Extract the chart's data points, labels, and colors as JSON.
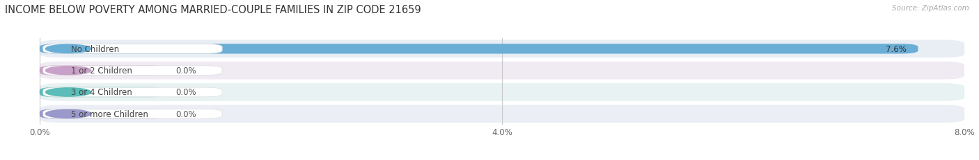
{
  "title": "INCOME BELOW POVERTY AMONG MARRIED-COUPLE FAMILIES IN ZIP CODE 21659",
  "source": "Source: ZipAtlas.com",
  "categories": [
    "No Children",
    "1 or 2 Children",
    "3 or 4 Children",
    "5 or more Children"
  ],
  "values": [
    7.6,
    0.0,
    0.0,
    0.0
  ],
  "bar_colors": [
    "#6aaed6",
    "#c9a0c8",
    "#5bbcb8",
    "#9999cc"
  ],
  "row_bg_colors": [
    "#e8eef4",
    "#f0eaf2",
    "#e8f2f2",
    "#eceef6"
  ],
  "xlim_max": 8.0,
  "xticks": [
    0.0,
    4.0,
    8.0
  ],
  "xtick_labels": [
    "0.0%",
    "4.0%",
    "8.0%"
  ],
  "zero_bar_width": 1.1,
  "title_fontsize": 10.5,
  "label_fontsize": 8.5,
  "tick_fontsize": 8.5,
  "value_fontsize": 8.5
}
